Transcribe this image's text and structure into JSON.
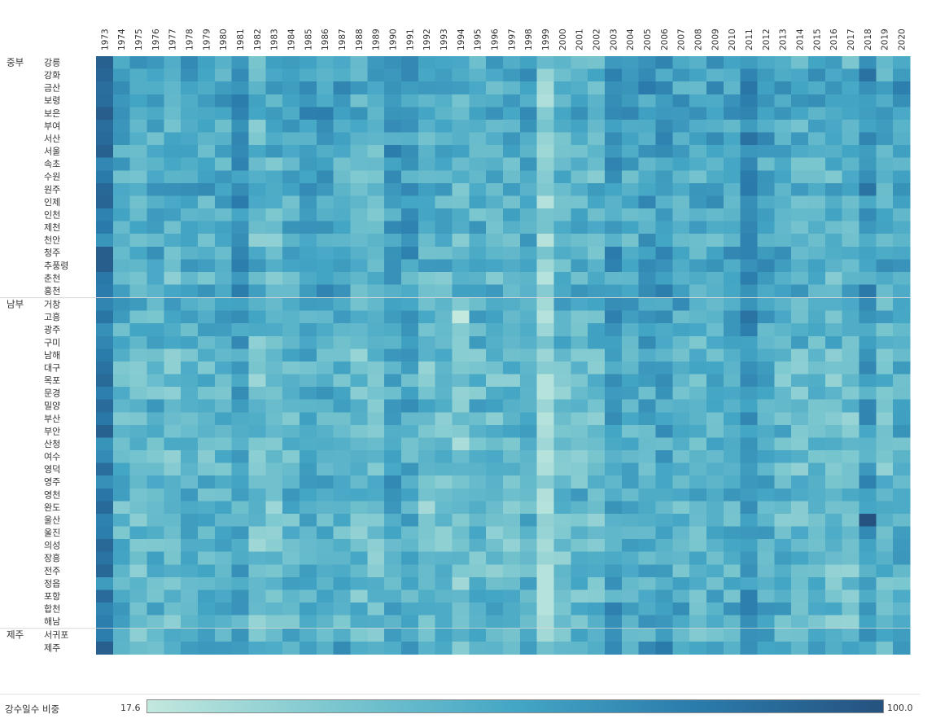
{
  "chart_data": {
    "type": "heatmap",
    "title": "",
    "years": [
      "1973",
      "1974",
      "1975",
      "1976",
      "1977",
      "1978",
      "1979",
      "1980",
      "1981",
      "1982",
      "1983",
      "1984",
      "1985",
      "1986",
      "1987",
      "1988",
      "1989",
      "1990",
      "1991",
      "1992",
      "1993",
      "1994",
      "1995",
      "1996",
      "1997",
      "1998",
      "1999",
      "2000",
      "2001",
      "2002",
      "2003",
      "2004",
      "2005",
      "2006",
      "2007",
      "2008",
      "2009",
      "2010",
      "2011",
      "2012",
      "2013",
      "2014",
      "2015",
      "2016",
      "2017",
      "2018",
      "2019",
      "2020"
    ],
    "groups": [
      {
        "name": "중부",
        "stations": [
          "강릉",
          "강화",
          "금산",
          "보령",
          "보은",
          "부여",
          "서산",
          "서울",
          "속초",
          "수원",
          "원주",
          "인제",
          "인천",
          "제천",
          "천안",
          "청주",
          "추풍령",
          "춘천",
          "홍천"
        ]
      },
      {
        "name": "남부",
        "stations": [
          "거창",
          "고흥",
          "광주",
          "구미",
          "남해",
          "대구",
          "목포",
          "문경",
          "밀양",
          "부산",
          "부안",
          "산청",
          "여수",
          "영덕",
          "영주",
          "영천",
          "완도",
          "울산",
          "울진",
          "의성",
          "장흥",
          "전주",
          "정읍",
          "포항",
          "합천",
          "해남"
        ]
      },
      {
        "name": "제주",
        "stations": [
          "서귀포",
          "제주"
        ]
      }
    ],
    "year_effect": [
      30,
      2,
      -1,
      0,
      -2,
      4,
      1,
      2,
      12,
      -6,
      -3,
      2,
      6,
      6,
      3,
      -4,
      -4,
      9,
      8,
      -6,
      -2,
      -8,
      -1,
      -2,
      -2,
      4,
      -24,
      -4,
      -1,
      -4,
      10,
      4,
      8,
      10,
      3,
      -1,
      5,
      4,
      18,
      6,
      0,
      -1,
      0,
      -3,
      -4,
      14,
      -2,
      6
    ],
    "group_effect": [
      2,
      -2,
      1
    ],
    "pinned": [
      {
        "station": "울산",
        "year": "2018",
        "value": 100.0
      },
      {
        "station": "고흥",
        "year": "1994",
        "value": 17.6
      }
    ],
    "value_range": [
      17.6,
      100.0
    ],
    "colors": [
      "#c3e8de",
      "#7cc7cf",
      "#44a6c5",
      "#2a7bab",
      "#26527f"
    ]
  },
  "legend": {
    "title": "강수일수 비중",
    "min_label": "17.6",
    "max_label": "100.0"
  }
}
